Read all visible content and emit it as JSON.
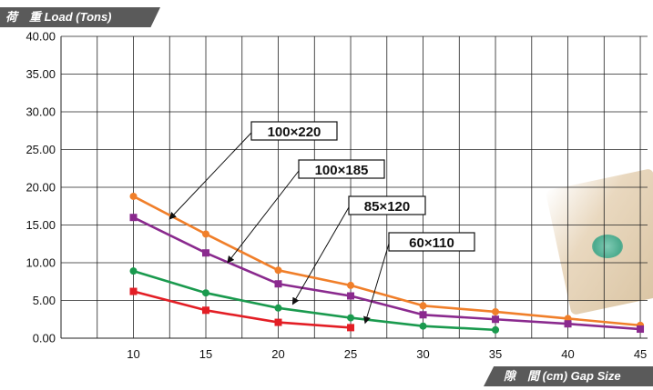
{
  "y_axis_title": "荷　重 Load (Tons)",
  "x_axis_title": "隙　間 (cm) Gap Size",
  "chart_data": {
    "type": "line",
    "ylabel": "荷　重 Load (Tons)",
    "xlabel": "隙　間 (cm) Gap Size",
    "x": [
      10,
      15,
      20,
      25,
      30,
      35,
      40,
      45
    ],
    "y_ticks": [
      "0.00",
      "5.00",
      "10.00",
      "15.00",
      "20.00",
      "25.00",
      "30.00",
      "35.00",
      "40.00"
    ],
    "x_ticks": [
      "10",
      "15",
      "20",
      "25",
      "30",
      "35",
      "40",
      "45"
    ],
    "ylim": [
      0,
      40
    ],
    "grid": true,
    "series": [
      {
        "name": "100×220",
        "color": "#f07f2a",
        "marker": "circle",
        "points": [
          [
            10,
            18.8
          ],
          [
            15,
            13.8
          ],
          [
            20,
            9.0
          ],
          [
            25,
            7.0
          ],
          [
            30,
            4.3
          ],
          [
            35,
            3.5
          ],
          [
            40,
            2.6
          ],
          [
            45,
            1.7
          ]
        ]
      },
      {
        "name": "100×185",
        "color": "#8a2a8e",
        "marker": "square",
        "points": [
          [
            10,
            16.0
          ],
          [
            15,
            11.3
          ],
          [
            20,
            7.2
          ],
          [
            25,
            5.6
          ],
          [
            30,
            3.1
          ],
          [
            35,
            2.5
          ],
          [
            40,
            1.9
          ],
          [
            45,
            1.2
          ]
        ]
      },
      {
        "name": "85×120",
        "color": "#1a9a4e",
        "marker": "circle",
        "points": [
          [
            10,
            8.9
          ],
          [
            15,
            6.0
          ],
          [
            20,
            4.0
          ],
          [
            25,
            2.7
          ],
          [
            30,
            1.6
          ],
          [
            35,
            1.1
          ]
        ]
      },
      {
        "name": "60×110",
        "color": "#e31e25",
        "marker": "square",
        "points": [
          [
            10,
            6.2
          ],
          [
            15,
            3.7
          ],
          [
            20,
            2.1
          ],
          [
            25,
            1.4
          ]
        ]
      }
    ],
    "annotations": [
      {
        "series": "100×220",
        "text": "100×220",
        "point_at": [
          12.5,
          15.8
        ]
      },
      {
        "series": "100×185",
        "text": "100×185",
        "point_at": [
          16.5,
          10.0
        ]
      },
      {
        "series": "85×120",
        "text": "85×120",
        "point_at": [
          21.0,
          4.5
        ]
      },
      {
        "series": "60×110",
        "text": "60×110",
        "point_at": [
          26.0,
          2.0
        ]
      }
    ]
  }
}
